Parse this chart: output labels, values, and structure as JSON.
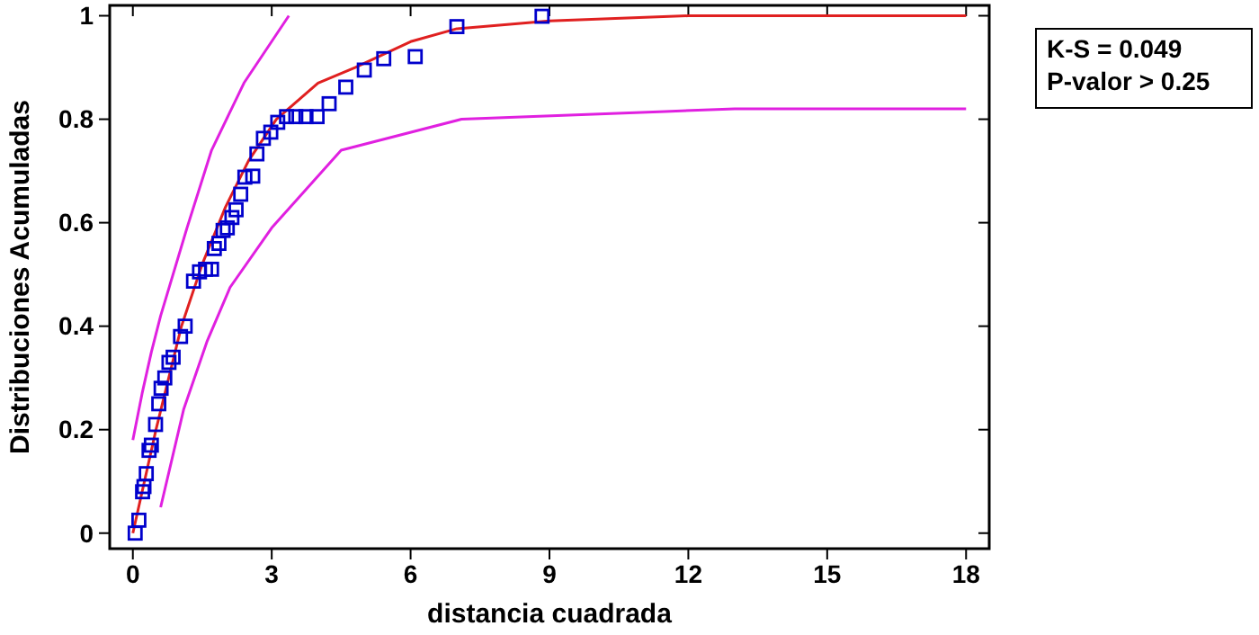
{
  "chart_data": {
    "type": "scatter",
    "xlabel": "distancia cuadrada",
    "ylabel": "Distribuciones Acumuladas",
    "xlim": [
      -0.5,
      18.5
    ],
    "ylim": [
      -0.03,
      1.02
    ],
    "xticks": [
      0,
      3,
      6,
      9,
      12,
      15,
      18
    ],
    "yticks": [
      0,
      0.2,
      0.4,
      0.6,
      0.8,
      1
    ],
    "grid": false,
    "annotations": [
      "K-S = 0.049",
      "P-valor > 0.25"
    ],
    "series": [
      {
        "type": "line",
        "color": "#e02020",
        "line_style": "solid",
        "x": [
          0,
          0.5,
          1.05,
          1.5,
          2,
          2.5,
          3.1,
          4,
          4.8,
          6,
          7,
          9,
          12,
          18
        ],
        "values": [
          0,
          0.2,
          0.4,
          0.52,
          0.63,
          0.72,
          0.8,
          0.87,
          0.9,
          0.95,
          0.975,
          0.99,
          1.0,
          1.0
        ]
      },
      {
        "type": "line",
        "color": "#e020e0",
        "line_style": "solid",
        "x": [
          0,
          0.2,
          0.4,
          0.6,
          1.17,
          1.7,
          2.4,
          3.37
        ],
        "values": [
          0.18,
          0.27,
          0.35,
          0.42,
          0.59,
          0.74,
          0.87,
          1.0
        ]
      },
      {
        "type": "line",
        "color": "#e020e0",
        "line_style": "solid",
        "x": [
          0.6,
          1.1,
          1.6,
          2.1,
          3,
          4.5,
          7.1,
          11.5,
          13,
          18
        ],
        "values": [
          0.05,
          0.24,
          0.37,
          0.475,
          0.59,
          0.74,
          0.8,
          0.815,
          0.82,
          0.82
        ]
      },
      {
        "color": "#0000cc",
        "marker": "square",
        "x": [
          0.05,
          0.13,
          0.21,
          0.24,
          0.29,
          0.35,
          0.4,
          0.49,
          0.56,
          0.61,
          0.69,
          0.78,
          0.87,
          1.03,
          1.13,
          1.31,
          1.44,
          1.57,
          1.7,
          1.76,
          1.86,
          1.95,
          2.04,
          2.14,
          2.23,
          2.33,
          2.42,
          2.59,
          2.68,
          2.82,
          2.98,
          3.13,
          3.32,
          3.52,
          3.74,
          3.98,
          4.24,
          4.6,
          5.0,
          5.42,
          6.1,
          7.0,
          8.84
        ],
        "values": [
          0,
          0.025,
          0.08,
          0.09,
          0.115,
          0.16,
          0.17,
          0.21,
          0.25,
          0.28,
          0.3,
          0.33,
          0.34,
          0.38,
          0.4,
          0.487,
          0.505,
          0.51,
          0.51,
          0.55,
          0.56,
          0.585,
          0.59,
          0.61,
          0.625,
          0.655,
          0.688,
          0.69,
          0.733,
          0.763,
          0.775,
          0.794,
          0.805,
          0.805,
          0.805,
          0.805,
          0.83,
          0.862,
          0.895,
          0.917,
          0.921,
          0.979,
          0.999
        ]
      }
    ]
  }
}
